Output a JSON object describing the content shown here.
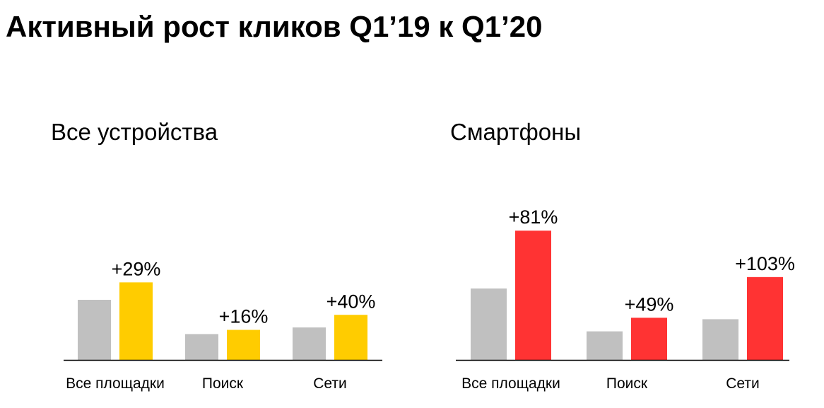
{
  "title": "Активный рост кликов Q1’19 к Q1’20",
  "colors": {
    "baseline_bar": "#c0c0c0",
    "all_devices_accent": "#ffcc00",
    "smartphones_accent": "#ff3333",
    "axis": "#000000"
  },
  "chart_data": [
    {
      "type": "bar",
      "title": "Все устройства",
      "categories": [
        "Все площадки",
        "Поиск",
        "Сети"
      ],
      "series": [
        {
          "color_key": "baseline_bar",
          "values": [
            100,
            43,
            54
          ]
        },
        {
          "color_key": "all_devices_accent",
          "values": [
            129,
            50,
            75
          ]
        }
      ],
      "data_labels": [
        "+29%",
        "+16%",
        "+40%"
      ],
      "xlabel": "",
      "ylabel": "",
      "grid": false,
      "legend": "none"
    },
    {
      "type": "bar",
      "title": "Смартфоны",
      "categories": [
        "Все площадки",
        "Поиск",
        "Сети"
      ],
      "series": [
        {
          "color_key": "baseline_bar",
          "values": [
            100,
            40,
            57
          ]
        },
        {
          "color_key": "smartphones_accent",
          "values": [
            181,
            59,
            116
          ]
        }
      ],
      "data_labels": [
        "+81%",
        "+49%",
        "+103%"
      ],
      "xlabel": "",
      "ylabel": "",
      "grid": false,
      "legend": "none"
    }
  ]
}
